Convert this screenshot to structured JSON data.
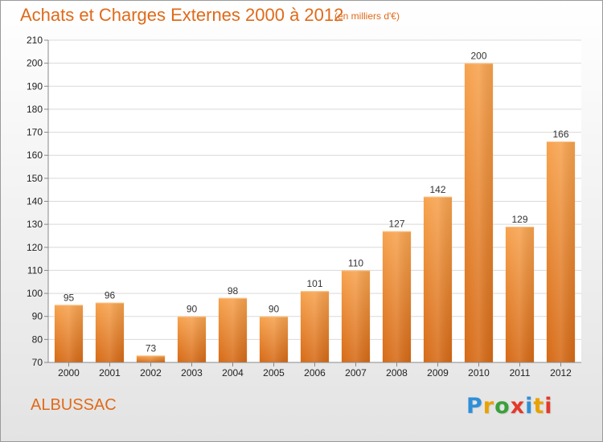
{
  "header": {
    "title": "Achats et Charges Externes 2000 à 2012",
    "subtitle": "(en milliers d'€)"
  },
  "commune": "ALBUSSAC",
  "brand": {
    "letters": [
      "P",
      "r",
      "o",
      "x",
      "i",
      "t",
      "i"
    ],
    "colors": [
      "#2f8fd8",
      "#e9a200",
      "#3aa13a",
      "#e23a2a",
      "#2f8fd8",
      "#e9a200",
      "#e23a2a"
    ]
  },
  "colors": {
    "accent": "#e06a1a",
    "bar_top": "#f7a34f",
    "bar_bottom": "#d66a16"
  },
  "chart_data": {
    "type": "bar",
    "title": "Achats et Charges Externes 2000 à 2012",
    "subtitle": "(en milliers d'€)",
    "categories": [
      "2000",
      "2001",
      "2002",
      "2003",
      "2004",
      "2005",
      "2006",
      "2007",
      "2008",
      "2009",
      "2010",
      "2011",
      "2012"
    ],
    "values": [
      95,
      96,
      73,
      90,
      98,
      90,
      101,
      110,
      127,
      142,
      200,
      129,
      166
    ],
    "ylim": [
      70,
      210
    ],
    "yticks": [
      70,
      80,
      90,
      100,
      110,
      120,
      130,
      140,
      150,
      160,
      170,
      180,
      190,
      200,
      210
    ],
    "grid": true,
    "data_labels": true
  }
}
